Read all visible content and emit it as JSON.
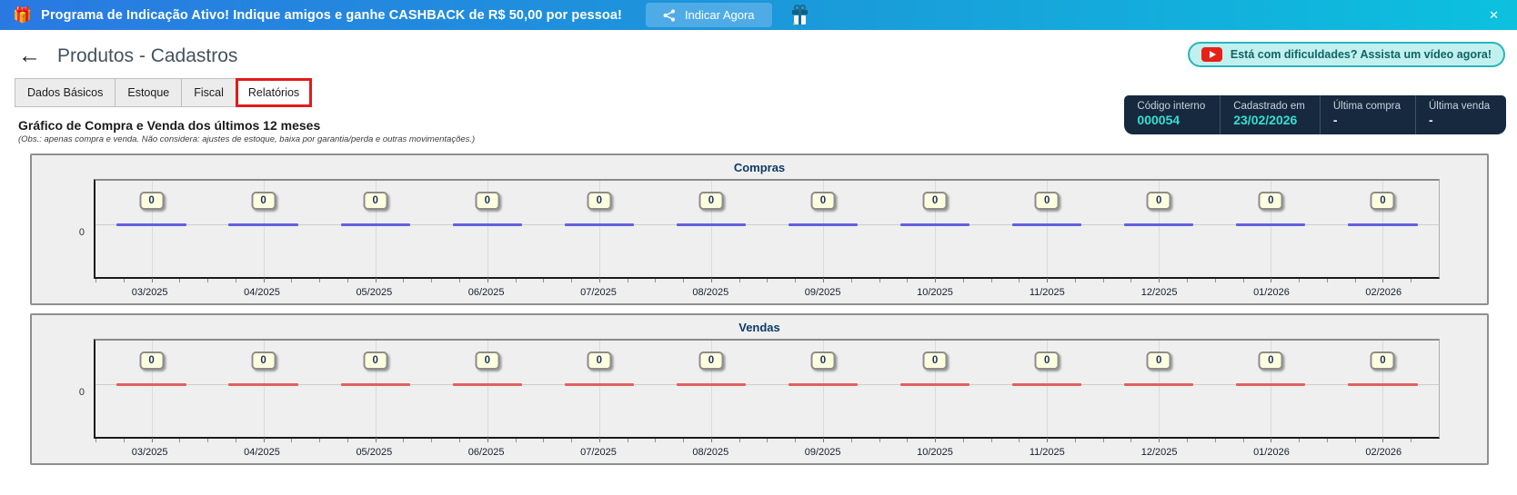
{
  "banner": {
    "gift_emoji": "🎁",
    "message": "Programa de Indicação Ativo! Indique amigos e ganhe CASHBACK de R$ 50,00 por pessoa!",
    "cta_label": "Indicar Agora",
    "close_glyph": "✕",
    "colors": {
      "gradient_start": "#2a79e2",
      "gradient_end": "#0cc1de",
      "cta_bg": "#4fabe5"
    }
  },
  "header": {
    "back_glyph": "←",
    "title": "Produtos - Cadastros",
    "video_button_label": "Está com dificuldades? Assista um vídeo agora!"
  },
  "tabs": [
    {
      "label": "Dados Básicos",
      "active": false
    },
    {
      "label": "Estoque",
      "active": false
    },
    {
      "label": "Fiscal",
      "active": false
    },
    {
      "label": "Relatórios",
      "active": true
    }
  ],
  "tab_highlight_color": "#e21b1b",
  "info_panel": {
    "bg_color": "#16293e",
    "value_highlight_color": "#35dfd2",
    "items": [
      {
        "label": "Código interno",
        "value": "000054",
        "highlight": true
      },
      {
        "label": "Cadastrado em",
        "value": "23/02/2026",
        "highlight": true
      },
      {
        "label": "Última compra",
        "value": "-",
        "highlight": false
      },
      {
        "label": "Última venda",
        "value": "-",
        "highlight": false
      }
    ]
  },
  "section": {
    "title": "Gráfico de Compra e Venda dos últimos 12 meses",
    "note": "(Obs.: apenas compra e venda. Não considera: ajustes de estoque, baixa por garantia/perda e outras movimentações.)"
  },
  "chart_data": [
    {
      "type": "line",
      "title": "Compras",
      "categories": [
        "03/2025",
        "04/2025",
        "05/2025",
        "06/2025",
        "07/2025",
        "08/2025",
        "09/2025",
        "10/2025",
        "11/2025",
        "12/2025",
        "01/2026",
        "02/2026"
      ],
      "values": [
        0,
        0,
        0,
        0,
        0,
        0,
        0,
        0,
        0,
        0,
        0,
        0
      ],
      "yticks": [
        "0"
      ],
      "ylim": [
        0,
        0
      ],
      "line_color": "#6161dd",
      "grid": true,
      "value_labels": true,
      "legend": "none"
    },
    {
      "type": "line",
      "title": "Vendas",
      "categories": [
        "03/2025",
        "04/2025",
        "05/2025",
        "06/2025",
        "07/2025",
        "08/2025",
        "09/2025",
        "10/2025",
        "11/2025",
        "12/2025",
        "01/2026",
        "02/2026"
      ],
      "values": [
        0,
        0,
        0,
        0,
        0,
        0,
        0,
        0,
        0,
        0,
        0,
        0
      ],
      "yticks": [
        "0"
      ],
      "ylim": [
        0,
        0
      ],
      "line_color": "#e06060",
      "grid": true,
      "value_labels": true,
      "legend": "none"
    }
  ]
}
